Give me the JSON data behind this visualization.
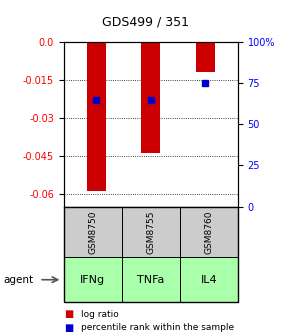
{
  "title": "GDS499 / 351",
  "samples": [
    "GSM8750",
    "GSM8755",
    "GSM8760"
  ],
  "agents": [
    "IFNg",
    "TNFa",
    "IL4"
  ],
  "log_ratios": [
    -0.059,
    -0.044,
    -0.012
  ],
  "percentile_ranks": [
    65,
    65,
    75
  ],
  "ylim_left": [
    -0.065,
    0.0
  ],
  "ylim_right": [
    0,
    100
  ],
  "yticks_left": [
    0.0,
    -0.015,
    -0.03,
    -0.045,
    -0.06
  ],
  "yticks_right": [
    100,
    75,
    50,
    25,
    0
  ],
  "bar_color": "#cc0000",
  "dot_color": "#0000cc",
  "sample_box_color": "#cccccc",
  "agent_box_color_light": "#aaffaa",
  "legend_bar_label": "log ratio",
  "legend_dot_label": "percentile rank within the sample",
  "agent_label": "agent",
  "bar_width": 0.35
}
